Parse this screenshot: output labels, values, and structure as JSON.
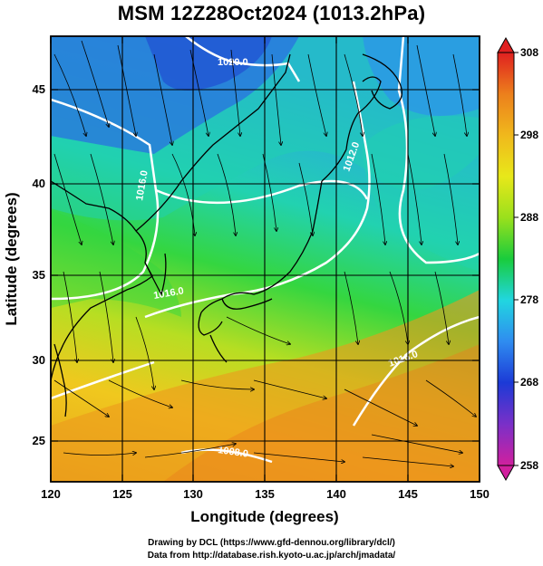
{
  "title": "MSM 12Z28Oct2024 (1013.2hPa)",
  "axes": {
    "xlabel": "Longitude (degrees)",
    "ylabel": "Latitude  (degrees)",
    "xlim": [
      120,
      150
    ],
    "ylim": [
      22.4,
      47.6
    ],
    "x_ticks": [
      "120",
      "125",
      "130",
      "135",
      "140",
      "145",
      "150"
    ],
    "y_ticks": [
      "25",
      "30",
      "35",
      "40",
      "45"
    ]
  },
  "colorbar": {
    "range": [
      258,
      308
    ],
    "ticks": [
      "308",
      "298",
      "288",
      "278",
      "268",
      "258"
    ],
    "colors": [
      "#d1209e",
      "#7a30c8",
      "#1c3ad6",
      "#2f8cf0",
      "#21d6e0",
      "#19cc3c",
      "#9ae01c",
      "#e8e81a",
      "#f0b81c",
      "#ec7f1c",
      "#e02020"
    ]
  },
  "isobar_labels": [
    "1020.0",
    "1016.0",
    "1012.0",
    "1016.0",
    "1016.0",
    "1008.0"
  ],
  "credits": {
    "line1": "Drawing by DCL (https://www.gfd-dennou.org/library/dcl/)",
    "line2": "Data from http://database.rish.kyoto-u.ac.jp/arch/jmadata/"
  }
}
